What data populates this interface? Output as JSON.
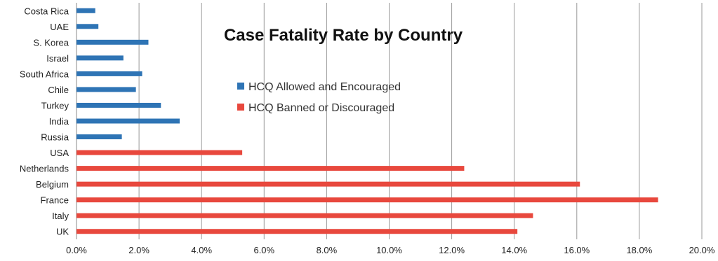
{
  "chart_data": {
    "type": "bar",
    "orientation": "horizontal",
    "title": "Case Fatality Rate by Country",
    "xlabel": "",
    "ylabel": "",
    "xlim": [
      0,
      20
    ],
    "x_ticks": [
      0,
      2,
      4,
      6,
      8,
      10,
      12,
      14,
      16,
      18,
      20
    ],
    "x_tick_labels": [
      "0.0%",
      "2.0%",
      "4.0%",
      "6.0%",
      "8.0%",
      "10.0%",
      "12.0%",
      "14.0%",
      "16.0%",
      "18.0%",
      "20.0%"
    ],
    "grid": "vertical",
    "legend_position": "top-center",
    "categories": [
      "Costa Rica",
      "UAE",
      "S. Korea",
      "Israel",
      "South Africa",
      "Chile",
      "Turkey",
      "India",
      "Russia",
      "USA",
      "Netherlands",
      "Belgium",
      "France",
      "Italy",
      "UK"
    ],
    "values": [
      0.6,
      0.7,
      2.3,
      1.5,
      2.1,
      1.9,
      2.7,
      3.3,
      1.45,
      5.3,
      12.4,
      16.1,
      18.6,
      14.6,
      14.1
    ],
    "groups": [
      0,
      0,
      0,
      0,
      0,
      0,
      0,
      0,
      0,
      1,
      1,
      1,
      1,
      1,
      1
    ],
    "series": [
      {
        "name": "HCQ Allowed and Encouraged",
        "color": "#2e74b5"
      },
      {
        "name": "HCQ Banned or Discouraged",
        "color": "#e8483d"
      }
    ]
  }
}
